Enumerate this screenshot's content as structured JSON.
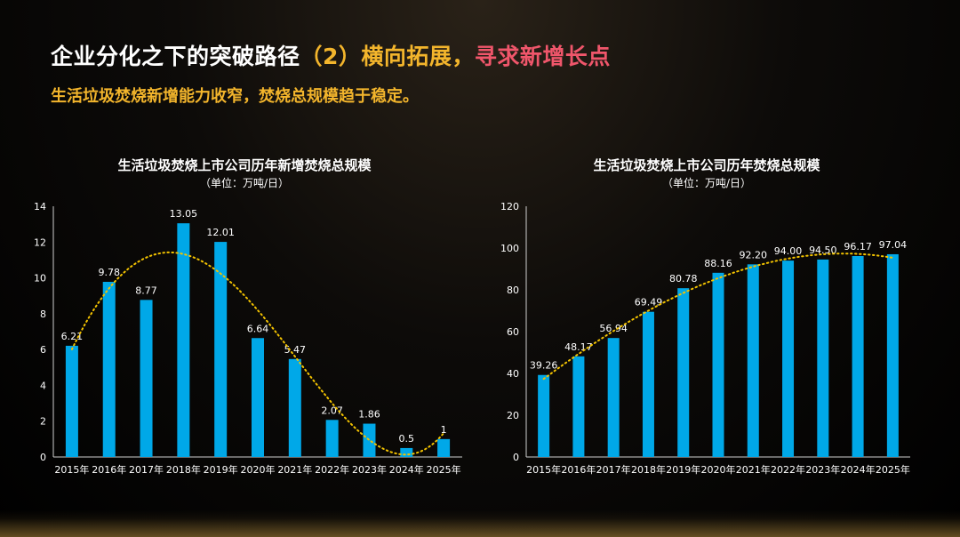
{
  "header": {
    "title_part1": "企业分化之下的突破路径",
    "title_part2": "（2）横向拓展，",
    "title_part3": "寻求新增长点",
    "subtitle": "生活垃圾焚烧新增能力收窄，焚烧总规模趋于稳定。"
  },
  "colors": {
    "bar": "#00a8e8",
    "trend": "#f3c300",
    "accent_orange": "#f3b52c",
    "accent_pink": "#f0566b"
  },
  "chart_data": [
    {
      "type": "bar",
      "title": "生活垃圾焚烧上市公司历年新增焚烧总规模",
      "unit": "（单位：万吨/日）",
      "categories": [
        "2015年",
        "2016年",
        "2017年",
        "2018年",
        "2019年",
        "2020年",
        "2021年",
        "2022年",
        "2023年",
        "2024年",
        "2025年"
      ],
      "values": [
        6.21,
        9.78,
        8.77,
        13.05,
        12.01,
        6.64,
        5.47,
        2.07,
        1.86,
        0.5,
        1
      ],
      "value_labels": [
        "6.21",
        "9.78",
        "8.77",
        "13.05",
        "12.01",
        "6.64",
        "5.47",
        "2.07",
        "1.86",
        "0.5",
        "1"
      ],
      "ylim": [
        0,
        14
      ],
      "yticks": [
        "0",
        "2",
        "4",
        "6",
        "8",
        "10",
        "12",
        "14"
      ],
      "trendline": "polynomial dotted"
    },
    {
      "type": "bar",
      "title": "生活垃圾焚烧上市公司历年焚烧总规模",
      "unit": "（单位：万吨/日）",
      "categories": [
        "2015年",
        "2016年",
        "2017年",
        "2018年",
        "2019年",
        "2020年",
        "2021年",
        "2022年",
        "2023年",
        "2024年",
        "2025年"
      ],
      "values": [
        39.26,
        48.17,
        56.94,
        69.49,
        80.78,
        88.16,
        92.2,
        94.0,
        94.5,
        96.17,
        97.04
      ],
      "value_labels": [
        "39.26",
        "48.17",
        "56.94",
        "69.49",
        "80.78",
        "88.16",
        "92.20",
        "94.00",
        "94.50",
        "96.17",
        "97.04"
      ],
      "ylim": [
        0,
        120
      ],
      "yticks": [
        "0",
        "20",
        "40",
        "60",
        "80",
        "100",
        "120"
      ],
      "trendline": "polynomial dotted"
    }
  ]
}
